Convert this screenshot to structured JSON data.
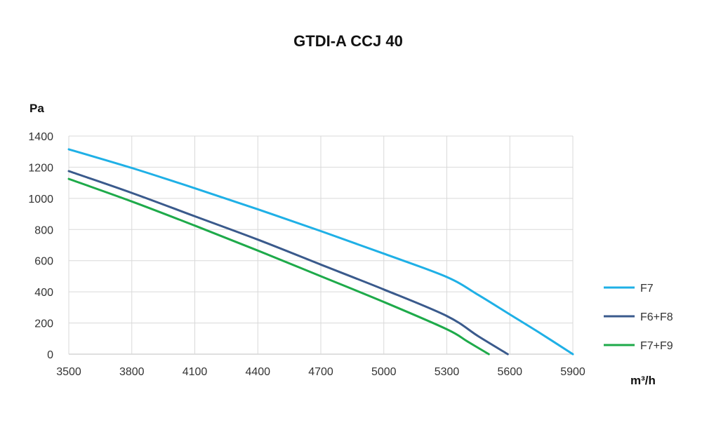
{
  "chart_data": {
    "type": "line",
    "title": "GTDI-A CCJ 40",
    "ylabel": "Pa",
    "xlabel": "m³/h",
    "xlim": [
      3500,
      5900
    ],
    "ylim": [
      0,
      1400
    ],
    "x_ticks": [
      3500,
      3800,
      4100,
      4400,
      4700,
      5000,
      5300,
      5600,
      5900
    ],
    "y_ticks": [
      0,
      200,
      400,
      600,
      800,
      1000,
      1200,
      1400
    ],
    "grid": true,
    "legend_position": "right",
    "series": [
      {
        "name": "F7",
        "color": "#1fb0e6",
        "points": [
          [
            3500,
            1315
          ],
          [
            3800,
            1195
          ],
          [
            4100,
            1065
          ],
          [
            4400,
            930
          ],
          [
            4700,
            790
          ],
          [
            5000,
            645
          ],
          [
            5300,
            495
          ],
          [
            5450,
            380
          ],
          [
            5600,
            255
          ],
          [
            5750,
            130
          ],
          [
            5900,
            0
          ]
        ]
      },
      {
        "name": "F6+F8",
        "color": "#3a5a8c",
        "points": [
          [
            3500,
            1175
          ],
          [
            3800,
            1035
          ],
          [
            4100,
            885
          ],
          [
            4400,
            735
          ],
          [
            4700,
            575
          ],
          [
            5000,
            415
          ],
          [
            5300,
            245
          ],
          [
            5450,
            115
          ],
          [
            5590,
            0
          ]
        ]
      },
      {
        "name": "F7+F9",
        "color": "#1eaa4a",
        "points": [
          [
            3500,
            1125
          ],
          [
            3800,
            980
          ],
          [
            4100,
            825
          ],
          [
            4400,
            665
          ],
          [
            4700,
            500
          ],
          [
            5000,
            335
          ],
          [
            5300,
            160
          ],
          [
            5400,
            80
          ],
          [
            5500,
            0
          ]
        ]
      }
    ]
  }
}
